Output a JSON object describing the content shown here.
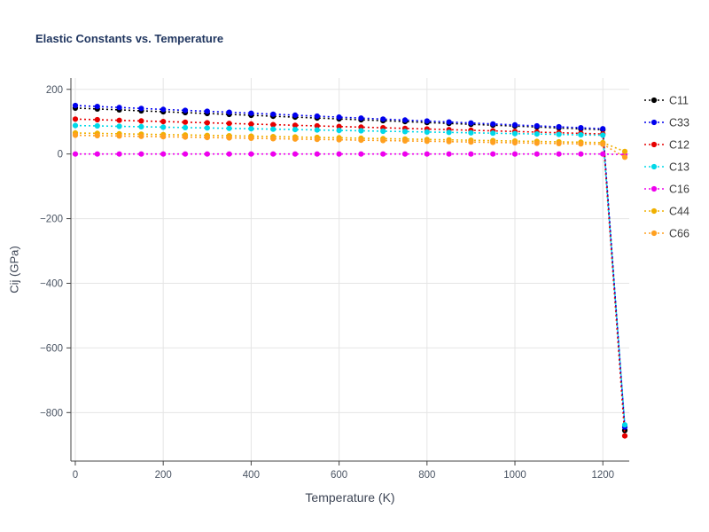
{
  "chart_data": {
    "type": "line",
    "title": "Elastic Constants vs. Temperature",
    "xlabel": "Temperature (K)",
    "ylabel": "Cij (GPa)",
    "xlim": [
      -10,
      1260
    ],
    "ylim": [
      -950,
      235
    ],
    "x_ticks": [
      0,
      200,
      400,
      600,
      800,
      1000,
      1200
    ],
    "y_ticks": [
      200,
      0,
      -200,
      -400,
      -600,
      -800
    ],
    "grid": true,
    "legend_position": "right-outside",
    "line_style": "dotted",
    "marker": "circle",
    "x": [
      0,
      50,
      100,
      150,
      200,
      250,
      300,
      350,
      400,
      450,
      500,
      550,
      600,
      650,
      700,
      750,
      800,
      850,
      900,
      950,
      1000,
      1050,
      1100,
      1150,
      1200,
      1250
    ],
    "series": [
      {
        "name": "C11",
        "color": "#000000",
        "y": [
          142,
          139.2,
          136.4,
          133.6,
          130.8,
          128.1,
          125.3,
          122.5,
          119.7,
          116.9,
          114.1,
          111.3,
          108.5,
          105.8,
          103,
          100.2,
          97.4,
          94.6,
          91.8,
          89,
          86.3,
          83.5,
          80.7,
          77.9,
          75.1,
          -855
        ]
      },
      {
        "name": "C33",
        "color": "#0000ee",
        "y": [
          150,
          147,
          144,
          141,
          138,
          135,
          132,
          129,
          126,
          123,
          120,
          117,
          114,
          111,
          108,
          105,
          102,
          99,
          96,
          93,
          90,
          87,
          84,
          81,
          78,
          -845
        ]
      },
      {
        "name": "C12",
        "color": "#e60000",
        "y": [
          108,
          106.1,
          104.2,
          102.3,
          100.3,
          98.4,
          96.5,
          94.6,
          92.7,
          90.8,
          88.8,
          86.9,
          85,
          83.1,
          81.2,
          79.3,
          77.3,
          75.4,
          73.5,
          71.6,
          69.7,
          67.8,
          65.8,
          63.9,
          62,
          -872
        ]
      },
      {
        "name": "C13",
        "color": "#00d8e8",
        "y": [
          88,
          86.8,
          85.5,
          84.3,
          83,
          81.8,
          80.5,
          79.3,
          78,
          76.8,
          75.5,
          74.3,
          73,
          71.8,
          70.5,
          69.3,
          68,
          66.8,
          65.5,
          64.3,
          63,
          61.8,
          60.5,
          59.3,
          58,
          -838
        ]
      },
      {
        "name": "C16",
        "color": "#ee00ee",
        "y": [
          0,
          0,
          0,
          0,
          0,
          0,
          0,
          0,
          0,
          0,
          0,
          0,
          0,
          0,
          0,
          0,
          0,
          0,
          0,
          0,
          0,
          0,
          0,
          0,
          0,
          -2
        ]
      },
      {
        "name": "C44",
        "color": "#f0b000",
        "y": [
          65,
          63.8,
          62.5,
          61.3,
          60,
          58.8,
          57.5,
          56.3,
          55,
          53.8,
          52.5,
          51.3,
          50,
          48.8,
          47.5,
          46.3,
          45,
          43.8,
          42.5,
          41.3,
          40,
          38.8,
          37.5,
          36.3,
          35,
          8
        ]
      },
      {
        "name": "C66",
        "color": "#ffa020",
        "y": [
          58,
          56.8,
          55.7,
          54.5,
          53.3,
          52.2,
          51,
          49.8,
          48.7,
          47.5,
          46.3,
          45.2,
          44,
          42.8,
          41.7,
          40.5,
          39.3,
          38.2,
          37,
          35.8,
          34.7,
          33.5,
          32.3,
          31.2,
          30,
          -10
        ]
      }
    ]
  },
  "colors": {
    "title": "#1f355f",
    "axis_label": "#3c4454",
    "tick_label": "#4a5463",
    "axis_line": "#444444",
    "grid": "#e5e5e5",
    "legend_text": "#3b3b3b",
    "background": "#ffffff"
  }
}
